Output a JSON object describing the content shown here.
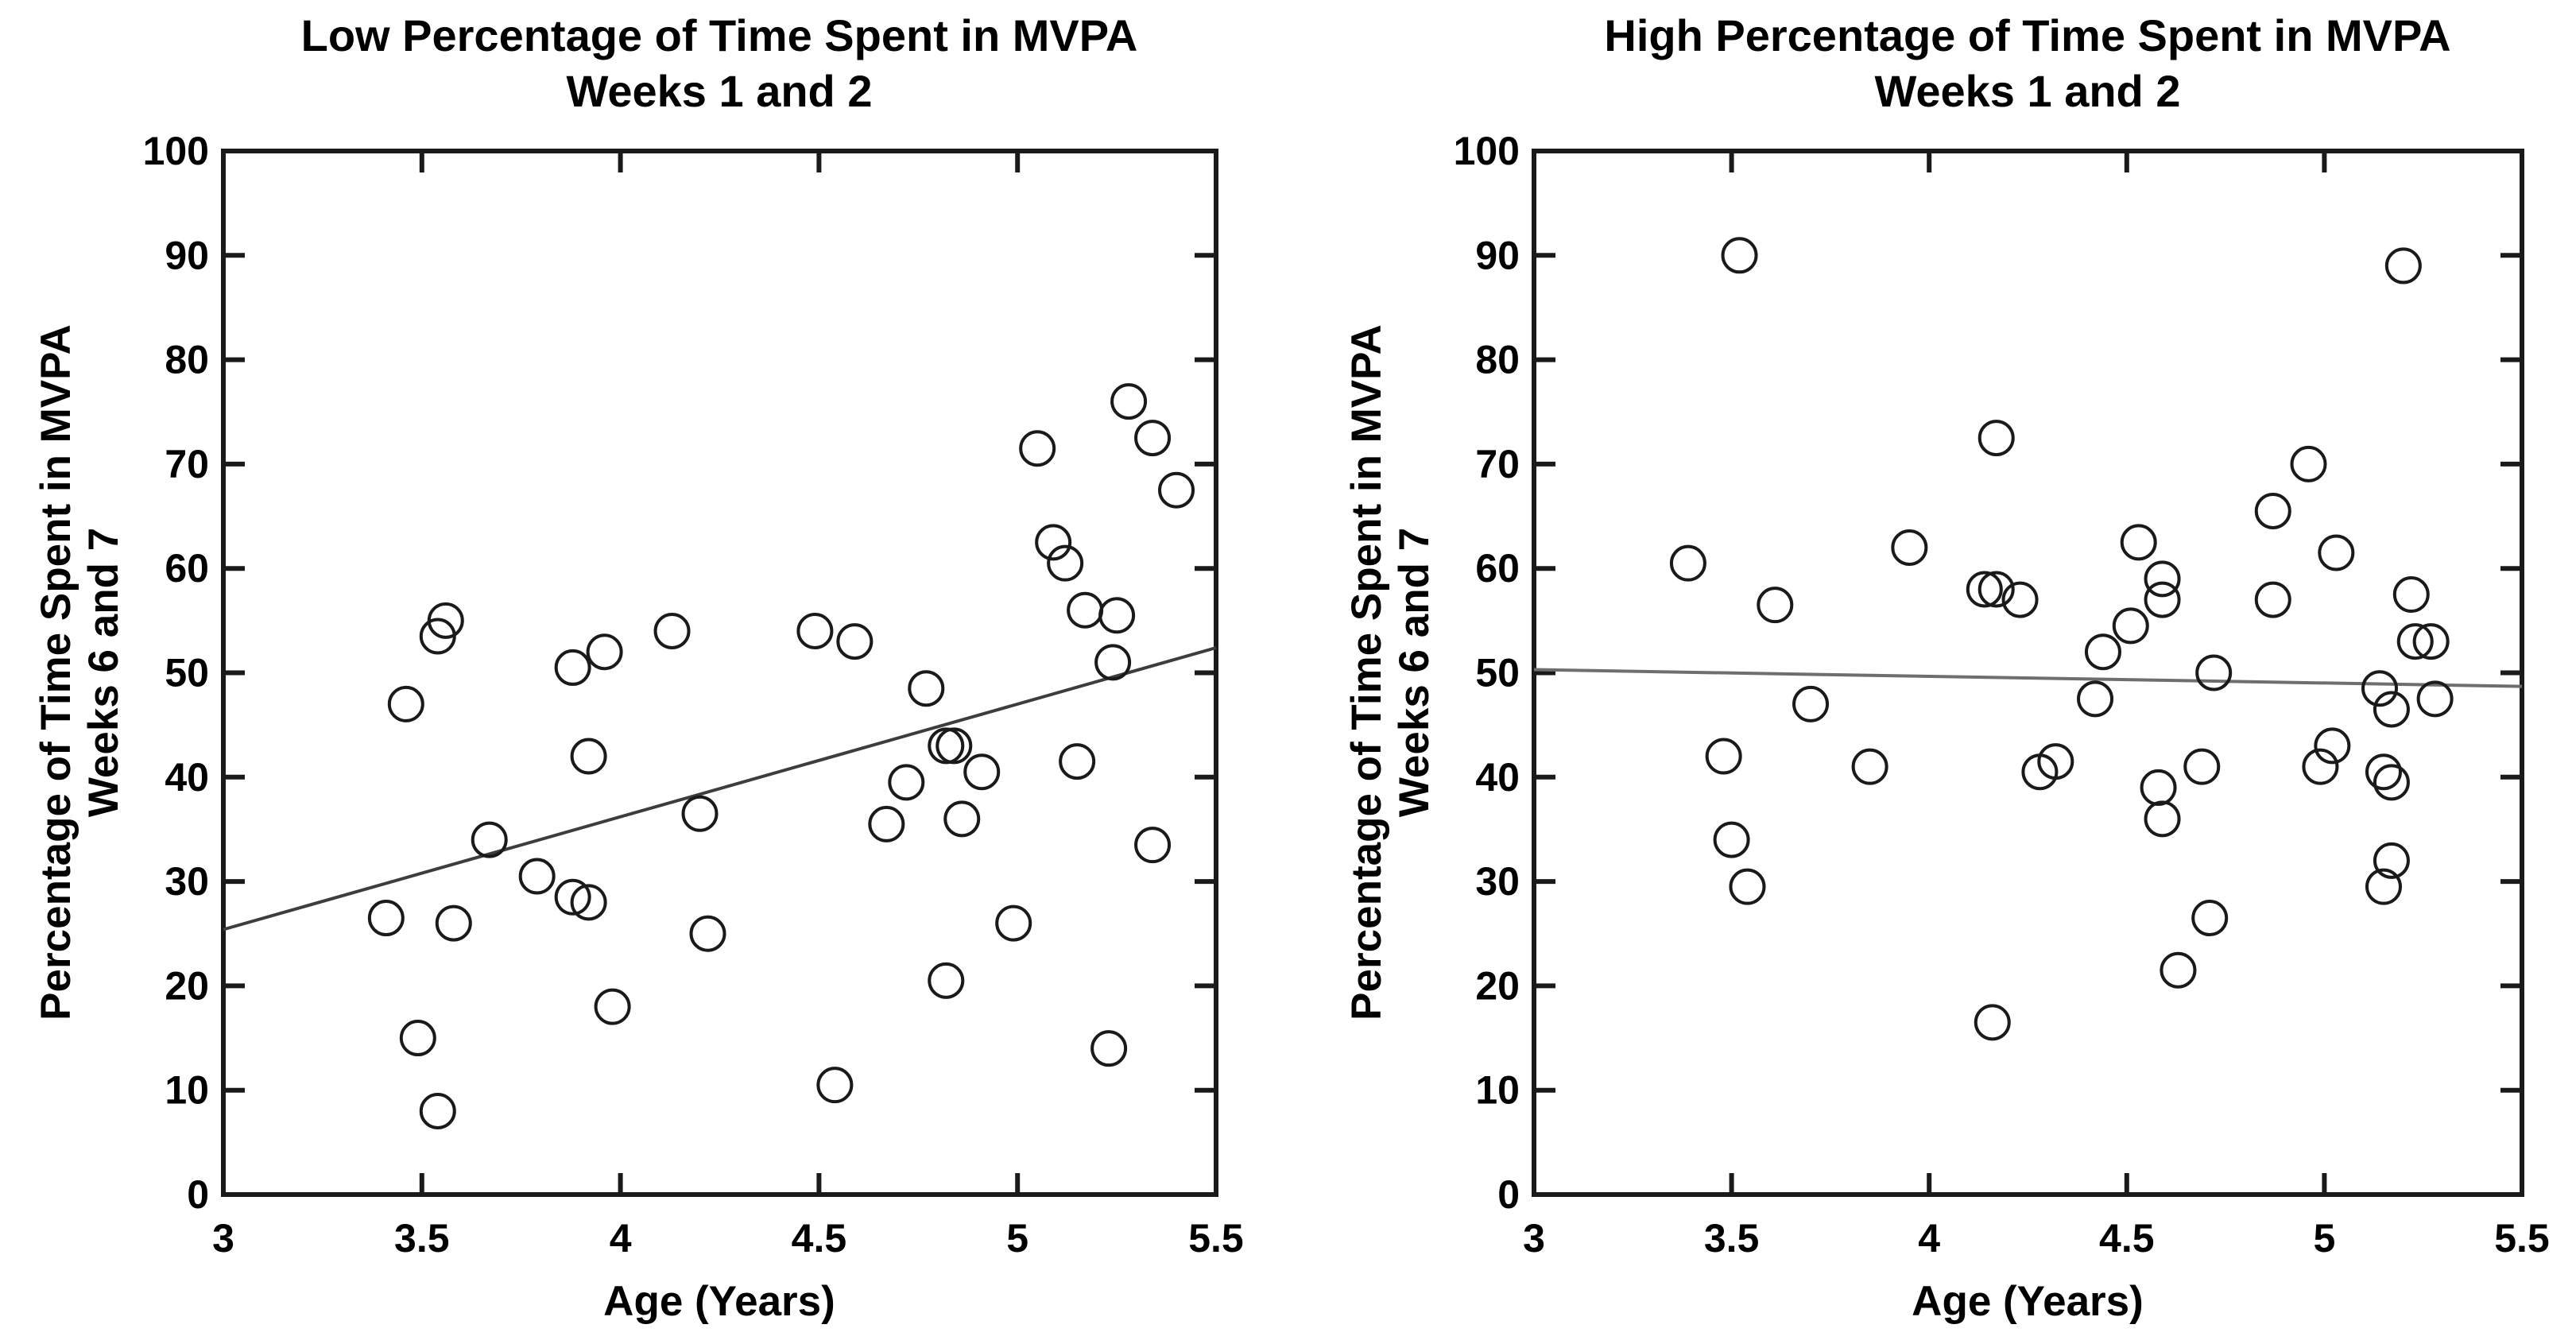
{
  "page": {
    "background": "#ffffff",
    "text_color": "#000000"
  },
  "chart_data": [
    {
      "type": "scatter",
      "title": "Low Percentage of Time Spent in MVPA",
      "subtitle": "Weeks 1 and 2",
      "xlabel": "Age (Years)",
      "ylabel_line1": "Percentage of Time Spent in MVPA",
      "ylabel_line2": "Weeks 6 and 7",
      "xlim": [
        3,
        5.5
      ],
      "ylim": [
        0,
        100
      ],
      "xtick_values": [
        3,
        3.5,
        4,
        4.5,
        5,
        5.5
      ],
      "xtick_labels": [
        "3",
        "3.5",
        "4",
        "4.5",
        "5",
        "5.5"
      ],
      "ytick_values": [
        0,
        10,
        20,
        30,
        40,
        50,
        60,
        70,
        80,
        90,
        100
      ],
      "ytick_labels": [
        "0",
        "10",
        "20",
        "30",
        "40",
        "50",
        "60",
        "70",
        "80",
        "90",
        "100"
      ],
      "grid": false,
      "legend": "none",
      "marker": {
        "shape": "open-circle",
        "color": "#1a1a1a"
      },
      "points": [
        [
          3.41,
          26.5
        ],
        [
          3.46,
          47
        ],
        [
          3.49,
          15
        ],
        [
          3.54,
          8
        ],
        [
          3.54,
          53.5
        ],
        [
          3.56,
          55
        ],
        [
          3.58,
          26
        ],
        [
          3.67,
          34
        ],
        [
          3.79,
          30.5
        ],
        [
          3.88,
          28.5
        ],
        [
          3.92,
          28
        ],
        [
          3.88,
          50.5
        ],
        [
          3.96,
          52
        ],
        [
          3.92,
          42
        ],
        [
          3.98,
          18
        ],
        [
          4.13,
          54
        ],
        [
          4.2,
          36.5
        ],
        [
          4.22,
          25
        ],
        [
          4.49,
          54
        ],
        [
          4.54,
          10.5
        ],
        [
          4.59,
          53
        ],
        [
          4.67,
          35.5
        ],
        [
          4.72,
          39.5
        ],
        [
          4.77,
          48.5
        ],
        [
          4.82,
          43
        ],
        [
          4.84,
          43
        ],
        [
          4.86,
          36
        ],
        [
          4.91,
          40.5
        ],
        [
          4.82,
          20.5
        ],
        [
          4.99,
          26
        ],
        [
          5.05,
          71.5
        ],
        [
          5.09,
          62.5
        ],
        [
          5.12,
          60.5
        ],
        [
          5.15,
          41.5
        ],
        [
          5.17,
          56
        ],
        [
          5.25,
          55.5
        ],
        [
          5.24,
          51
        ],
        [
          5.23,
          14
        ],
        [
          5.28,
          76
        ],
        [
          5.34,
          72.5
        ],
        [
          5.34,
          33.5
        ],
        [
          5.4,
          67.5
        ]
      ],
      "trend_line": {
        "x": [
          3,
          5.5
        ],
        "y": [
          25.4,
          52.4
        ],
        "color": "#3d3d3d"
      }
    },
    {
      "type": "scatter",
      "title": "High Percentage of Time Spent in MVPA",
      "subtitle": "Weeks 1 and 2",
      "xlabel": "Age (Years)",
      "ylabel_line1": "Percentage of Time Spent in MVPA",
      "ylabel_line2": "Weeks 6 and 7",
      "xlim": [
        3,
        5.5
      ],
      "ylim": [
        0,
        100
      ],
      "xtick_values": [
        3,
        3.5,
        4,
        4.5,
        5,
        5.5
      ],
      "xtick_labels": [
        "3",
        "3.5",
        "4",
        "4.5",
        "5",
        "5.5"
      ],
      "ytick_values": [
        0,
        10,
        20,
        30,
        40,
        50,
        60,
        70,
        80,
        90,
        100
      ],
      "ytick_labels": [
        "0",
        "10",
        "20",
        "30",
        "40",
        "50",
        "60",
        "70",
        "80",
        "90",
        "100"
      ],
      "grid": false,
      "legend": "none",
      "marker": {
        "shape": "open-circle",
        "color": "#1a1a1a"
      },
      "points": [
        [
          3.39,
          60.5
        ],
        [
          3.48,
          42
        ],
        [
          3.5,
          34
        ],
        [
          3.52,
          90
        ],
        [
          3.54,
          29.5
        ],
        [
          3.61,
          56.5
        ],
        [
          3.7,
          47
        ],
        [
          3.85,
          41
        ],
        [
          3.95,
          62
        ],
        [
          4.16,
          16.5
        ],
        [
          4.14,
          58
        ],
        [
          4.17,
          58
        ],
        [
          4.17,
          72.5
        ],
        [
          4.23,
          57
        ],
        [
          4.28,
          40.5
        ],
        [
          4.32,
          41.5
        ],
        [
          4.42,
          47.5
        ],
        [
          4.44,
          52
        ],
        [
          4.51,
          54.5
        ],
        [
          4.53,
          62.5
        ],
        [
          4.58,
          39
        ],
        [
          4.59,
          36
        ],
        [
          4.59,
          59
        ],
        [
          4.59,
          57
        ],
        [
          4.63,
          21.5
        ],
        [
          4.69,
          41
        ],
        [
          4.71,
          26.5
        ],
        [
          4.72,
          50
        ],
        [
          4.87,
          65.5
        ],
        [
          4.87,
          57
        ],
        [
          4.96,
          70
        ],
        [
          4.99,
          41
        ],
        [
          5.02,
          43
        ],
        [
          5.03,
          61.5
        ],
        [
          5.14,
          48.5
        ],
        [
          5.17,
          46.5
        ],
        [
          5.15,
          40.5
        ],
        [
          5.17,
          39.5
        ],
        [
          5.17,
          32
        ],
        [
          5.15,
          29.5
        ],
        [
          5.2,
          89
        ],
        [
          5.22,
          57.5
        ],
        [
          5.23,
          53
        ],
        [
          5.27,
          53
        ],
        [
          5.28,
          47.5
        ]
      ],
      "trend_line": {
        "x": [
          3,
          5.5
        ],
        "y": [
          50.3,
          48.7
        ],
        "color": "#6e6e6e"
      }
    }
  ]
}
